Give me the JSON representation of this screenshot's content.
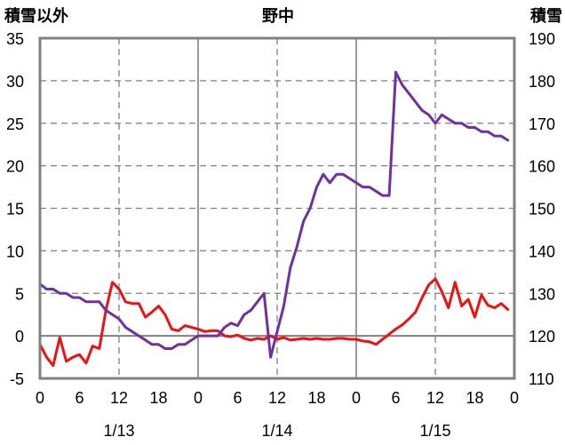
{
  "chart_data": {
    "type": "line",
    "title": "野中",
    "left_axis_label": "積雪以外",
    "right_axis_label": "積雪",
    "left_ylim": [
      -5,
      35
    ],
    "left_yticks": [
      "-5",
      "0",
      "5",
      "10",
      "15",
      "20",
      "25",
      "30",
      "35"
    ],
    "right_ylim": [
      110,
      190
    ],
    "right_yticks": [
      "110",
      "120",
      "130",
      "140",
      "150",
      "160",
      "170",
      "180",
      "190"
    ],
    "x_range_hours": [
      0,
      72
    ],
    "x_tick_labels": [
      "0",
      "6",
      "12",
      "18",
      "0",
      "6",
      "12",
      "18",
      "0",
      "6",
      "12",
      "18",
      "0"
    ],
    "x_tick_hours": [
      0,
      6,
      12,
      18,
      24,
      30,
      36,
      42,
      48,
      54,
      60,
      66,
      72
    ],
    "date_labels": [
      {
        "label": "1/13",
        "hour": 12
      },
      {
        "label": "1/14",
        "hour": 36
      },
      {
        "label": "1/15",
        "hour": 60
      }
    ],
    "day_boundaries_hours": [
      24,
      48
    ],
    "grid": {
      "horizontal_dashed": true,
      "vertical_dashed_hours": [
        12,
        36,
        60
      ]
    },
    "colors": {
      "red": "#ee1111",
      "purple": "#7030a0",
      "axis": "#808080"
    },
    "series": [
      {
        "axis": "left",
        "color": "#ee1111",
        "x": [
          0,
          1,
          2,
          3,
          4,
          5,
          6,
          7,
          8,
          9,
          10,
          11,
          12,
          13,
          14,
          15,
          16,
          17,
          18,
          19,
          20,
          21,
          22,
          23,
          24,
          25,
          26,
          27,
          28,
          29,
          30,
          31,
          32,
          33,
          34,
          35,
          36,
          37,
          38,
          39,
          40,
          41,
          42,
          43,
          44,
          45,
          46,
          47,
          48,
          49,
          50,
          51,
          52,
          53,
          54,
          55,
          56,
          57,
          58,
          59,
          60,
          61,
          62,
          63,
          64,
          65,
          66,
          67,
          68,
          69,
          70,
          71
        ],
        "values": [
          -1,
          -2.5,
          -3.5,
          -0.2,
          -3,
          -2.5,
          -2.2,
          -3.2,
          -1.2,
          -1.5,
          3,
          6.3,
          5.5,
          4,
          3.8,
          3.8,
          2.2,
          2.8,
          3.5,
          2.5,
          0.8,
          0.6,
          1.2,
          1,
          0.8,
          0.5,
          0.6,
          0.6,
          0,
          -0.1,
          0.1,
          -0.3,
          -0.5,
          -0.3,
          -0.4,
          0,
          -0.4,
          -0.2,
          -0.5,
          -0.4,
          -0.3,
          -0.4,
          -0.3,
          -0.4,
          -0.4,
          -0.3,
          -0.3,
          -0.4,
          -0.4,
          -0.6,
          -0.7,
          -1,
          -0.4,
          0.2,
          0.8,
          1.3,
          2,
          2.8,
          4.5,
          6,
          6.7,
          5.2,
          3.3,
          6.3,
          3.5,
          4.3,
          2.2,
          4.8,
          3.6,
          3.3,
          3.8,
          3.1
        ]
      },
      {
        "axis": "left",
        "color": "#7030a0",
        "x": [
          0,
          1,
          2,
          3,
          4,
          5,
          6,
          7,
          8,
          9,
          10,
          11,
          12,
          13,
          14,
          15,
          16,
          17,
          18,
          19,
          20,
          21,
          22,
          23,
          24,
          25,
          26,
          27,
          28,
          29,
          30,
          31,
          32,
          33,
          34,
          35,
          36,
          37,
          38,
          39,
          40,
          41,
          42,
          43,
          44,
          45,
          46,
          47,
          48,
          49,
          50,
          51,
          52,
          53,
          54,
          55,
          56,
          57,
          58,
          59,
          60,
          61,
          62,
          63,
          64,
          65,
          66,
          67,
          68,
          69,
          70,
          71
        ],
        "values": [
          6.1,
          5.5,
          5.5,
          5,
          5,
          4.5,
          4.5,
          4,
          4,
          4,
          3,
          2.5,
          2,
          1,
          0.5,
          0,
          -0.5,
          -1,
          -1,
          -1.5,
          -1.5,
          -1,
          -1,
          -0.5,
          0,
          0,
          0,
          0,
          1,
          1.5,
          1.2,
          2.5,
          3,
          4,
          5,
          -2.5,
          0.5,
          3.5,
          8,
          10.5,
          13.5,
          15,
          17.5,
          19,
          18,
          19,
          19,
          18.5,
          18,
          17.5,
          17.5,
          17,
          16.5,
          16.5,
          31,
          29.5,
          28.5,
          27.5,
          26.5,
          26,
          25,
          26,
          25.5,
          25,
          25,
          24.5,
          24.5,
          24,
          24,
          23.5,
          23.5,
          23
        ]
      }
    ]
  }
}
